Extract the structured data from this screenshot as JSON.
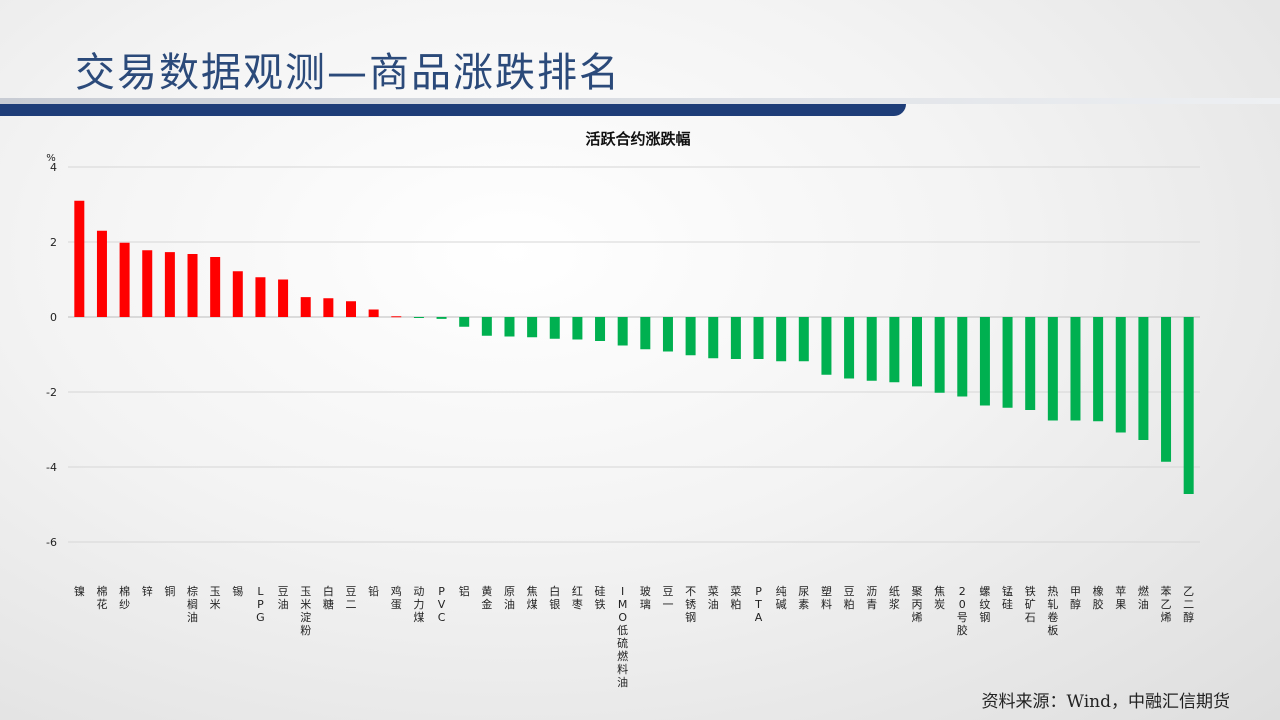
{
  "header": {
    "title": "交易数据观测—商品涨跌排名"
  },
  "footer": {
    "source": "资料来源：Wind，中融汇信期货"
  },
  "colors": {
    "up": "#ff0000",
    "down": "#00b050",
    "title": "#2b4a7a",
    "bar_dark": "#1e3d78"
  },
  "chart_data": {
    "type": "bar",
    "title": "活跃合约涨跌幅",
    "ylabel": "%",
    "ylim": [
      -6,
      4
    ],
    "yticks": [
      4,
      2,
      0,
      -2,
      -4,
      -6
    ],
    "grid": true,
    "categories": [
      "镍",
      "棉花",
      "棉纱",
      "锌",
      "铜",
      "棕榈油",
      "玉米",
      "锡",
      "LPG",
      "豆油",
      "玉米淀粉",
      "白糖",
      "豆二",
      "铅",
      "鸡蛋",
      "动力煤",
      "PVC",
      "铝",
      "黄金",
      "原油",
      "焦煤",
      "白银",
      "红枣",
      "硅铁",
      "IMO低硫燃料油",
      "玻璃",
      "豆一",
      "不锈钢",
      "菜油",
      "菜粕",
      "PTA",
      "纯碱",
      "尿素",
      "塑料",
      "豆粕",
      "沥青",
      "纸浆",
      "聚丙烯",
      "焦炭",
      "20号胶",
      "螺纹钢",
      "锰硅",
      "铁矿石",
      "热轧卷板",
      "甲醇",
      "橡胶",
      "苹果",
      "燃油",
      "苯乙烯",
      "乙二醇"
    ],
    "values": [
      3.1,
      2.3,
      1.98,
      1.78,
      1.73,
      1.68,
      1.6,
      1.22,
      1.06,
      1.0,
      0.53,
      0.5,
      0.42,
      0.2,
      0.02,
      -0.02,
      -0.05,
      -0.26,
      -0.5,
      -0.52,
      -0.54,
      -0.58,
      -0.6,
      -0.64,
      -0.76,
      -0.86,
      -0.92,
      -1.02,
      -1.1,
      -1.12,
      -1.12,
      -1.18,
      -1.18,
      -1.54,
      -1.64,
      -1.7,
      -1.74,
      -1.85,
      -2.02,
      -2.12,
      -2.36,
      -2.42,
      -2.48,
      -2.76,
      -2.76,
      -2.78,
      -3.08,
      -3.28,
      -3.86,
      -4.72
    ]
  }
}
